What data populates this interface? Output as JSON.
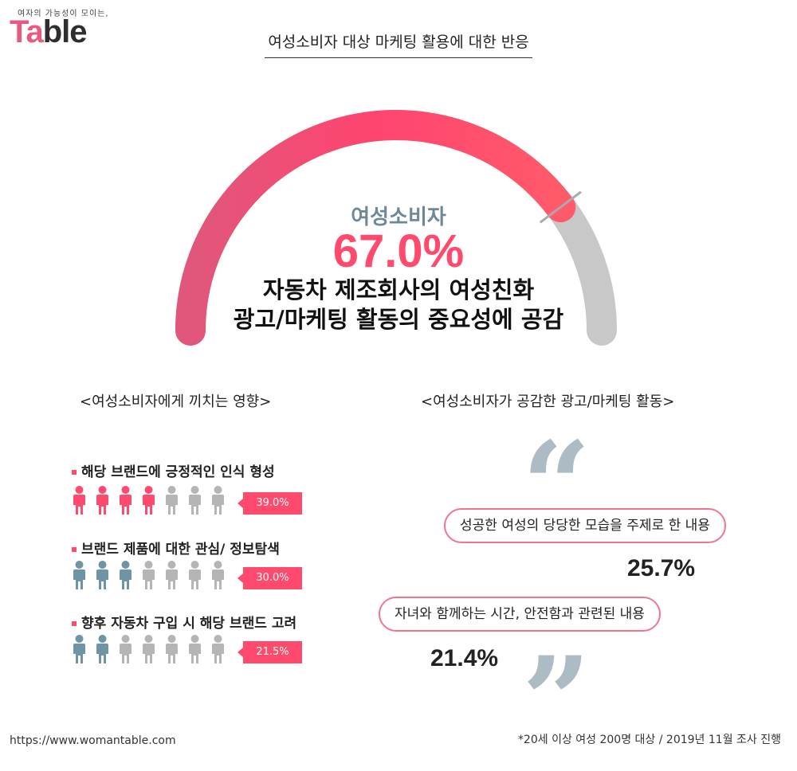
{
  "brand": {
    "tagline": "여자의 가능성이 모이는,",
    "logo": "Table"
  },
  "title": "여성소비자 대상 마케팅 활용에 대한 반응",
  "gauge": {
    "label": "여성소비자",
    "value": "67.0%",
    "desc_line1": "자동차 제조회사의 여성친화",
    "desc_line2": "광고/마케팅 활동의 중요성에 공감"
  },
  "left_section": {
    "title": "<여성소비자에게 끼치는 영향>",
    "items": [
      {
        "label": "해당 브랜드에 긍정적인 인식 형성",
        "value": "39.0%"
      },
      {
        "label": "브랜드 제품에 대한 관심/ 정보탐색",
        "value": "30.0%"
      },
      {
        "label": "향후 자동차 구입 시 해당 브랜드 고려",
        "value": "21.5%"
      }
    ]
  },
  "right_section": {
    "title": "<여성소비자가 공감한 광고/마케팅 활동>",
    "items": [
      {
        "label": "성공한 여성의 당당한 모습을 주제로 한 내용",
        "value": "25.7%"
      },
      {
        "label": "자녀와 함께하는 시간, 안전함과 관련된 내용",
        "value": "21.4%"
      }
    ]
  },
  "footer": {
    "url": "https://www.womantable.com",
    "note": "*20세 이상 여성 200명 대상 / 2019년 11월 조사 진행"
  },
  "colors": {
    "pink": "#ff4a6e",
    "teal": "#6e94a6",
    "gray": "#b5b5b5",
    "gauge_gray": "#c8c8c8"
  },
  "chart_data": {
    "type": "gauge+pictogram",
    "gauge": {
      "value": 67.0,
      "max": 100
    },
    "pictograms": [
      {
        "category": "해당 브랜드에 긍정적인 인식 형성",
        "value": 39.0,
        "filled": 4,
        "total": 7,
        "color": "#ff4a6e"
      },
      {
        "category": "브랜드 제품에 대한 관심/ 정보탐색",
        "value": 30.0,
        "filled": 3,
        "total": 7,
        "color": "#6e94a6"
      },
      {
        "category": "향후 자동차 구입 시 해당 브랜드 고려",
        "value": 21.5,
        "filled": 2,
        "total": 7,
        "color": "#6e94a6"
      }
    ],
    "quotes": [
      {
        "category": "성공한 여성의 당당한 모습을 주제로 한 내용",
        "value": 25.7
      },
      {
        "category": "자녀와 함께하는 시간, 안전함과 관련된 내용",
        "value": 21.4
      }
    ]
  }
}
